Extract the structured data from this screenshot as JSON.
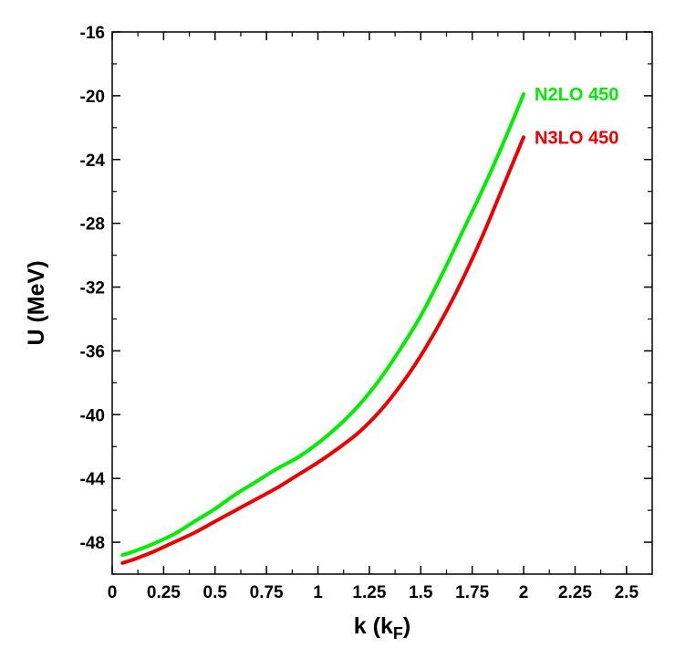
{
  "chart_data": {
    "type": "line",
    "xlabel": "k (k",
    "xlabel_sub": "F",
    "xlabel_close": ")",
    "ylabel": "U (MeV)",
    "xlim": [
      0,
      2.625
    ],
    "ylim": [
      -50,
      -16
    ],
    "x_ticks": [
      0,
      0.25,
      0.5,
      0.75,
      1,
      1.25,
      1.5,
      1.75,
      2,
      2.25,
      2.5
    ],
    "x_tick_labels": [
      "0",
      "0.25",
      "0.5",
      "0.75",
      "1",
      "1.25",
      "1.5",
      "1.75",
      "2",
      "2.25",
      "2.5"
    ],
    "y_ticks": [
      -48,
      -44,
      -40,
      -36,
      -32,
      -28,
      -24,
      -20,
      -16
    ],
    "y_tick_labels": [
      "-48",
      "-44",
      "-40",
      "-36",
      "-32",
      "-28",
      "-24",
      "-20",
      "-16"
    ],
    "grid": false,
    "series": [
      {
        "name": "N2LO 450",
        "color": "#00ee00",
        "x": [
          0.05,
          0.1,
          0.2,
          0.3,
          0.4,
          0.5,
          0.6,
          0.7,
          0.8,
          0.9,
          1.0,
          1.1,
          1.2,
          1.3,
          1.4,
          1.5,
          1.6,
          1.7,
          1.8,
          1.9,
          2.0
        ],
        "y": [
          -48.8,
          -48.6,
          -48.1,
          -47.5,
          -46.7,
          -45.9,
          -45.0,
          -44.2,
          -43.4,
          -42.7,
          -41.8,
          -40.7,
          -39.4,
          -37.8,
          -35.9,
          -33.8,
          -31.3,
          -28.6,
          -25.9,
          -23.0,
          -19.9
        ]
      },
      {
        "name": "N3LO 450",
        "color": "#ee0000",
        "x": [
          0.05,
          0.1,
          0.2,
          0.3,
          0.4,
          0.5,
          0.6,
          0.7,
          0.8,
          0.9,
          1.0,
          1.1,
          1.2,
          1.3,
          1.4,
          1.5,
          1.6,
          1.7,
          1.8,
          1.9,
          2.0
        ],
        "y": [
          -49.3,
          -49.1,
          -48.6,
          -48.0,
          -47.4,
          -46.7,
          -46.0,
          -45.3,
          -44.6,
          -43.8,
          -43.0,
          -42.1,
          -41.1,
          -39.8,
          -38.2,
          -36.3,
          -34.1,
          -31.6,
          -28.8,
          -25.7,
          -22.6
        ]
      }
    ]
  }
}
